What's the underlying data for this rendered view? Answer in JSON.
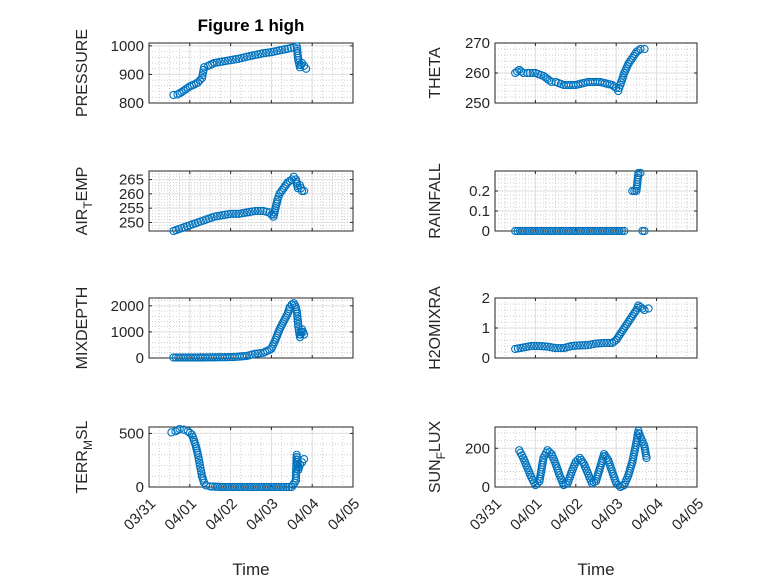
{
  "figure": {
    "title": "Figure 1 high",
    "marker_color": "#0072BD",
    "x_date_ticks": [
      "03/31",
      "04/01",
      "04/02",
      "04/03",
      "04/04",
      "04/05"
    ]
  },
  "chart_data": [
    {
      "type": "scatter",
      "ylabel": "PRESSURE",
      "xlabel": "",
      "title": "Figure 1 high",
      "xlim": [
        0,
        5
      ],
      "ylim": [
        800,
        1010
      ],
      "yticks": [
        800,
        900,
        1000
      ],
      "grid": true,
      "x_show_ticklabels": false,
      "points": [
        [
          0.6,
          828
        ],
        [
          0.7,
          830
        ],
        [
          0.8,
          838
        ],
        [
          0.9,
          848
        ],
        [
          1.0,
          858
        ],
        [
          1.1,
          864
        ],
        [
          1.2,
          872
        ],
        [
          1.3,
          888
        ],
        [
          1.35,
          925
        ],
        [
          1.45,
          930
        ],
        [
          1.6,
          940
        ],
        [
          1.8,
          945
        ],
        [
          2.0,
          950
        ],
        [
          2.2,
          955
        ],
        [
          2.4,
          962
        ],
        [
          2.6,
          968
        ],
        [
          2.8,
          974
        ],
        [
          3.0,
          978
        ],
        [
          3.2,
          984
        ],
        [
          3.4,
          990
        ],
        [
          3.55,
          995
        ],
        [
          3.62,
          998
        ],
        [
          3.66,
          950
        ],
        [
          3.7,
          925
        ],
        [
          3.75,
          940
        ],
        [
          3.8,
          930
        ],
        [
          3.85,
          920
        ]
      ]
    },
    {
      "type": "scatter",
      "ylabel": "THETA",
      "xlabel": "",
      "xlim": [
        0,
        5
      ],
      "ylim": [
        250,
        270
      ],
      "yticks": [
        250,
        260,
        270
      ],
      "grid": true,
      "x_show_ticklabels": false,
      "points": [
        [
          0.5,
          260
        ],
        [
          0.6,
          261
        ],
        [
          0.7,
          260
        ],
        [
          0.8,
          260
        ],
        [
          1.0,
          260
        ],
        [
          1.2,
          259
        ],
        [
          1.3,
          258
        ],
        [
          1.4,
          257
        ],
        [
          1.5,
          257
        ],
        [
          1.7,
          256
        ],
        [
          2.0,
          256
        ],
        [
          2.3,
          257
        ],
        [
          2.6,
          257
        ],
        [
          2.9,
          256
        ],
        [
          3.0,
          255
        ],
        [
          3.05,
          254
        ],
        [
          3.1,
          256
        ],
        [
          3.2,
          260
        ],
        [
          3.3,
          263
        ],
        [
          3.4,
          265
        ],
        [
          3.5,
          267
        ],
        [
          3.6,
          268
        ],
        [
          3.7,
          268
        ]
      ]
    },
    {
      "type": "scatter",
      "ylabel": "AIR_TEMP",
      "ylabel_parts": {
        "base": "AIR",
        "sub": "T",
        "rest": "EMP"
      },
      "xlabel": "",
      "xlim": [
        0,
        5
      ],
      "ylim": [
        247,
        268
      ],
      "yticks": [
        250,
        255,
        260,
        265
      ],
      "grid": true,
      "x_show_ticklabels": false,
      "points": [
        [
          0.6,
          247
        ],
        [
          0.8,
          248
        ],
        [
          1.0,
          249
        ],
        [
          1.2,
          250
        ],
        [
          1.4,
          251
        ],
        [
          1.6,
          252
        ],
        [
          1.8,
          252.5
        ],
        [
          2.0,
          253
        ],
        [
          2.2,
          253
        ],
        [
          2.4,
          253.5
        ],
        [
          2.6,
          254
        ],
        [
          2.8,
          254
        ],
        [
          2.95,
          253.5
        ],
        [
          3.05,
          252
        ],
        [
          3.1,
          255
        ],
        [
          3.15,
          258
        ],
        [
          3.2,
          260
        ],
        [
          3.3,
          262
        ],
        [
          3.4,
          264
        ],
        [
          3.5,
          265
        ],
        [
          3.55,
          266
        ],
        [
          3.6,
          265
        ],
        [
          3.65,
          262
        ],
        [
          3.7,
          263
        ],
        [
          3.75,
          261
        ],
        [
          3.8,
          261
        ]
      ]
    },
    {
      "type": "scatter",
      "ylabel": "RAINFALL",
      "xlabel": "",
      "xlim": [
        0,
        5
      ],
      "ylim": [
        0,
        0.3
      ],
      "yticks": [
        0,
        0.1,
        0.2
      ],
      "grid": true,
      "x_show_ticklabels": false,
      "points": [
        [
          0.5,
          0
        ],
        [
          0.8,
          0
        ],
        [
          1.1,
          0
        ],
        [
          1.4,
          0
        ],
        [
          1.7,
          0
        ],
        [
          2.0,
          0
        ],
        [
          2.3,
          0
        ],
        [
          2.6,
          0
        ],
        [
          2.9,
          0
        ],
        [
          3.2,
          0
        ],
        [
          3.4,
          0.2
        ],
        [
          3.45,
          0.2
        ],
        [
          3.5,
          0.2
        ],
        [
          3.55,
          0.29
        ],
        [
          3.6,
          0.29
        ],
        [
          3.65,
          0
        ],
        [
          3.7,
          0
        ]
      ]
    },
    {
      "type": "scatter",
      "ylabel": "MIXDEPTH",
      "xlabel": "",
      "xlim": [
        0,
        5
      ],
      "ylim": [
        0,
        2300
      ],
      "yticks": [
        0,
        1000,
        2000
      ],
      "grid": true,
      "x_show_ticklabels": false,
      "points": [
        [
          0.6,
          20
        ],
        [
          0.9,
          20
        ],
        [
          1.2,
          20
        ],
        [
          1.5,
          25
        ],
        [
          1.8,
          30
        ],
        [
          2.1,
          40
        ],
        [
          2.4,
          80
        ],
        [
          2.6,
          160
        ],
        [
          2.8,
          200
        ],
        [
          3.0,
          350
        ],
        [
          3.1,
          700
        ],
        [
          3.2,
          1100
        ],
        [
          3.3,
          1400
        ],
        [
          3.4,
          1700
        ],
        [
          3.45,
          1950
        ],
        [
          3.5,
          2050
        ],
        [
          3.55,
          2100
        ],
        [
          3.6,
          1950
        ],
        [
          3.63,
          1700
        ],
        [
          3.66,
          1200
        ],
        [
          3.7,
          800
        ],
        [
          3.75,
          1100
        ],
        [
          3.8,
          900
        ]
      ]
    },
    {
      "type": "scatter",
      "ylabel": "H2OMIXRA",
      "xlabel": "",
      "xlim": [
        0,
        5
      ],
      "ylim": [
        0,
        2
      ],
      "yticks": [
        0,
        1,
        2
      ],
      "grid": true,
      "x_show_ticklabels": false,
      "points": [
        [
          0.5,
          0.3
        ],
        [
          0.7,
          0.35
        ],
        [
          0.9,
          0.4
        ],
        [
          1.1,
          0.4
        ],
        [
          1.3,
          0.38
        ],
        [
          1.5,
          0.33
        ],
        [
          1.7,
          0.33
        ],
        [
          1.9,
          0.4
        ],
        [
          2.1,
          0.42
        ],
        [
          2.3,
          0.43
        ],
        [
          2.5,
          0.48
        ],
        [
          2.7,
          0.5
        ],
        [
          2.9,
          0.5
        ],
        [
          3.0,
          0.6
        ],
        [
          3.1,
          0.8
        ],
        [
          3.2,
          1.0
        ],
        [
          3.3,
          1.2
        ],
        [
          3.4,
          1.4
        ],
        [
          3.5,
          1.6
        ],
        [
          3.55,
          1.75
        ],
        [
          3.6,
          1.7
        ],
        [
          3.7,
          1.6
        ],
        [
          3.8,
          1.65
        ]
      ]
    },
    {
      "type": "scatter",
      "ylabel": "TERR_MSL",
      "ylabel_parts": {
        "base": "TERR",
        "sub": "M",
        "rest": "SL"
      },
      "xlabel": "Time",
      "xlim": [
        0,
        5
      ],
      "ylim": [
        0,
        560
      ],
      "yticks": [
        0,
        500
      ],
      "grid": true,
      "x_show_ticklabels": true,
      "points": [
        [
          0.55,
          510
        ],
        [
          0.65,
          520
        ],
        [
          0.75,
          540
        ],
        [
          0.85,
          535
        ],
        [
          0.95,
          520
        ],
        [
          1.05,
          490
        ],
        [
          1.1,
          440
        ],
        [
          1.15,
          380
        ],
        [
          1.2,
          300
        ],
        [
          1.25,
          200
        ],
        [
          1.3,
          100
        ],
        [
          1.35,
          40
        ],
        [
          1.4,
          15
        ],
        [
          1.5,
          5
        ],
        [
          1.8,
          0
        ],
        [
          2.1,
          0
        ],
        [
          2.4,
          0
        ],
        [
          2.7,
          0
        ],
        [
          3.0,
          0
        ],
        [
          3.3,
          0
        ],
        [
          3.5,
          0
        ],
        [
          3.6,
          60
        ],
        [
          3.62,
          300
        ],
        [
          3.66,
          160
        ],
        [
          3.7,
          210
        ],
        [
          3.75,
          230
        ],
        [
          3.8,
          260
        ]
      ]
    },
    {
      "type": "scatter",
      "ylabel": "SUN_FLUX",
      "ylabel_parts": {
        "base": "SUN",
        "sub": "F",
        "rest": "LUX"
      },
      "xlabel": "Time",
      "xlim": [
        0,
        5
      ],
      "ylim": [
        0,
        310
      ],
      "yticks": [
        0,
        200
      ],
      "grid": true,
      "x_show_ticklabels": true,
      "points": [
        [
          0.6,
          190
        ],
        [
          0.7,
          150
        ],
        [
          0.8,
          100
        ],
        [
          0.9,
          50
        ],
        [
          1.0,
          10
        ],
        [
          1.1,
          30
        ],
        [
          1.15,
          90
        ],
        [
          1.2,
          150
        ],
        [
          1.3,
          190
        ],
        [
          1.4,
          170
        ],
        [
          1.5,
          120
        ],
        [
          1.6,
          60
        ],
        [
          1.7,
          10
        ],
        [
          1.8,
          20
        ],
        [
          1.9,
          80
        ],
        [
          2.0,
          130
        ],
        [
          2.1,
          150
        ],
        [
          2.2,
          120
        ],
        [
          2.3,
          70
        ],
        [
          2.4,
          20
        ],
        [
          2.5,
          30
        ],
        [
          2.6,
          100
        ],
        [
          2.7,
          170
        ],
        [
          2.8,
          140
        ],
        [
          2.9,
          80
        ],
        [
          3.0,
          20
        ],
        [
          3.1,
          0
        ],
        [
          3.2,
          10
        ],
        [
          3.3,
          60
        ],
        [
          3.4,
          130
        ],
        [
          3.45,
          180
        ],
        [
          3.5,
          230
        ],
        [
          3.55,
          290
        ],
        [
          3.6,
          260
        ],
        [
          3.7,
          210
        ],
        [
          3.75,
          150
        ]
      ]
    }
  ]
}
